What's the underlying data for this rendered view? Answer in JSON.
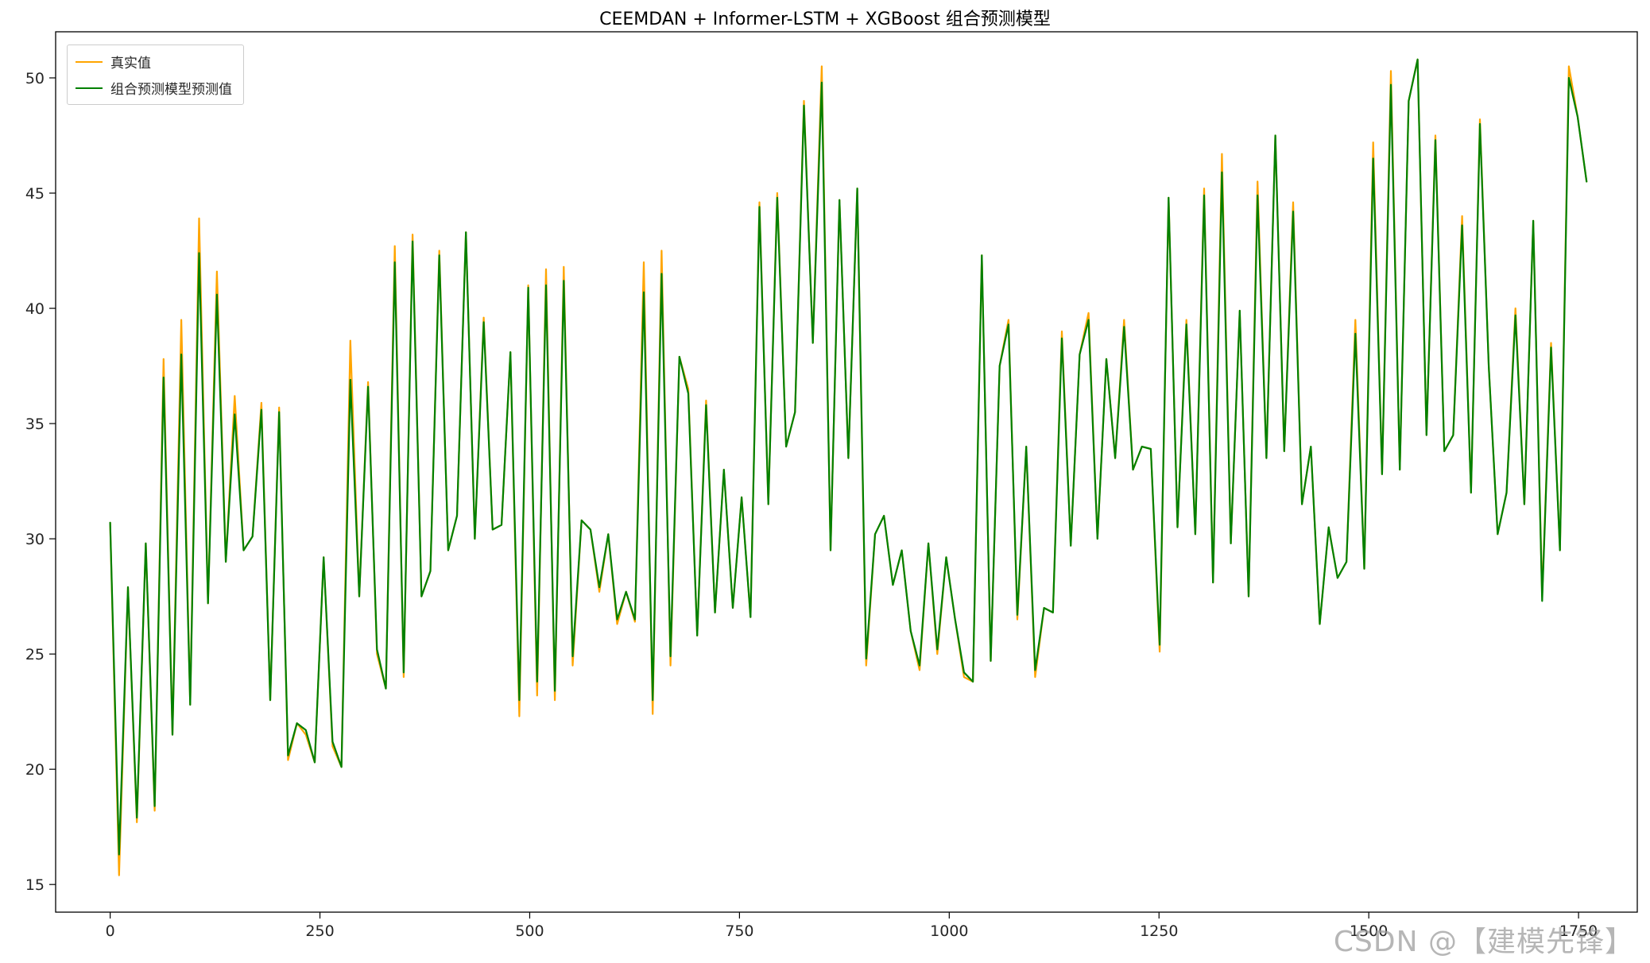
{
  "title": "CEEMDAN + Informer-LSTM + XGBoost 组合预测模型",
  "watermark": "CSDN @【建模先锋】",
  "legend": {
    "items": [
      {
        "label": "真实值",
        "color": "#FFA500"
      },
      {
        "label": "组合预测模型预测值",
        "color": "#008000"
      }
    ]
  },
  "chart_data": {
    "type": "line",
    "title": "CEEMDAN + Informer-LSTM + XGBoost 组合预测模型",
    "xlabel": "",
    "ylabel": "",
    "legend_position": "upper left",
    "grid": false,
    "x_ticks": [
      0,
      250,
      500,
      750,
      1000,
      1250,
      1500,
      1750
    ],
    "y_ticks": [
      15,
      20,
      25,
      30,
      35,
      40,
      45,
      50
    ],
    "x_range": [
      -65,
      1820
    ],
    "y_range": [
      13.8,
      52.0
    ],
    "x_start": 0,
    "x_step": 10.6,
    "series": [
      {
        "name": "真实值",
        "color": "#FFA500",
        "values": [
          30.7,
          15.4,
          27.9,
          17.7,
          29.8,
          18.2,
          37.8,
          21.5,
          39.5,
          22.8,
          43.9,
          27.2,
          41.6,
          29.0,
          36.2,
          29.5,
          30.1,
          35.9,
          23.0,
          35.7,
          20.4,
          22.0,
          21.5,
          20.3,
          29.2,
          21.0,
          20.1,
          38.6,
          27.5,
          36.8,
          25.0,
          23.5,
          42.7,
          24.0,
          43.2,
          27.5,
          28.6,
          42.5,
          29.5,
          31.0,
          43.3,
          30.0,
          39.6,
          30.4,
          30.6,
          38.1,
          22.3,
          41.0,
          23.2,
          41.7,
          23.0,
          41.8,
          24.5,
          30.8,
          30.4,
          27.7,
          30.2,
          26.3,
          27.7,
          26.4,
          42.0,
          22.4,
          42.5,
          24.5,
          37.9,
          36.5,
          25.8,
          36.0,
          26.8,
          33.0,
          27.0,
          31.8,
          26.6,
          44.6,
          31.5,
          45.0,
          34.0,
          35.5,
          49.0,
          38.5,
          50.5,
          29.5,
          44.7,
          33.5,
          45.2,
          24.5,
          30.2,
          31.0,
          28.0,
          29.5,
          26.0,
          24.3,
          29.8,
          25.0,
          29.2,
          26.5,
          24.0,
          23.8,
          42.3,
          24.7,
          37.5,
          39.5,
          26.5,
          34.0,
          24.0,
          27.0,
          26.8,
          39.0,
          29.7,
          38.0,
          39.8,
          30.0,
          37.8,
          33.5,
          39.5,
          33.0,
          34.0,
          33.9,
          25.1,
          44.8,
          30.5,
          39.5,
          30.2,
          45.2,
          28.1,
          46.7,
          29.8,
          39.9,
          27.5,
          45.5,
          33.5,
          47.5,
          33.8,
          44.6,
          31.5,
          34.0,
          26.3,
          30.5,
          28.3,
          29.0,
          39.5,
          28.7,
          47.2,
          32.8,
          50.3,
          33.0,
          49.0,
          50.8,
          34.5,
          47.5,
          33.8,
          34.5,
          44.0,
          32.0,
          48.2,
          37.5,
          30.2,
          32.0,
          40.0,
          31.5,
          43.8,
          27.5,
          38.5,
          29.5,
          50.5,
          48.3,
          45.5
        ]
      },
      {
        "name": "组合预测模型预测值",
        "color": "#008000",
        "values": [
          30.7,
          16.3,
          27.9,
          17.9,
          29.8,
          18.4,
          37.0,
          21.5,
          38.0,
          22.8,
          42.4,
          27.2,
          40.6,
          29.0,
          35.4,
          29.5,
          30.1,
          35.6,
          23.0,
          35.5,
          20.6,
          22.0,
          21.7,
          20.3,
          29.2,
          21.2,
          20.1,
          36.9,
          27.5,
          36.6,
          25.2,
          23.5,
          42.0,
          24.2,
          42.9,
          27.5,
          28.6,
          42.3,
          29.5,
          31.0,
          43.3,
          30.0,
          39.4,
          30.4,
          30.6,
          38.1,
          23.0,
          40.9,
          23.8,
          41.0,
          23.4,
          41.2,
          24.9,
          30.8,
          30.4,
          27.9,
          30.2,
          26.5,
          27.7,
          26.5,
          40.7,
          23.0,
          41.5,
          24.9,
          37.9,
          36.3,
          25.8,
          35.8,
          26.8,
          33.0,
          27.0,
          31.8,
          26.6,
          44.4,
          31.5,
          44.8,
          34.0,
          35.5,
          48.8,
          38.5,
          49.8,
          29.5,
          44.7,
          33.5,
          45.2,
          24.8,
          30.2,
          31.0,
          28.0,
          29.5,
          26.0,
          24.5,
          29.8,
          25.2,
          29.2,
          26.5,
          24.2,
          23.8,
          42.3,
          24.7,
          37.5,
          39.3,
          26.7,
          34.0,
          24.3,
          27.0,
          26.8,
          38.7,
          29.7,
          38.0,
          39.5,
          30.0,
          37.8,
          33.5,
          39.2,
          33.0,
          34.0,
          33.9,
          25.4,
          44.8,
          30.5,
          39.3,
          30.2,
          44.9,
          28.1,
          45.9,
          29.8,
          39.9,
          27.5,
          44.9,
          33.5,
          47.5,
          33.8,
          44.2,
          31.5,
          34.0,
          26.3,
          30.5,
          28.3,
          29.0,
          38.9,
          28.7,
          46.5,
          32.8,
          49.7,
          33.0,
          49.0,
          50.8,
          34.5,
          47.3,
          33.8,
          34.5,
          43.6,
          32.0,
          48.0,
          37.5,
          30.2,
          32.0,
          39.7,
          31.5,
          43.8,
          27.3,
          38.3,
          29.5,
          50.0,
          48.3,
          45.5
        ]
      }
    ]
  }
}
